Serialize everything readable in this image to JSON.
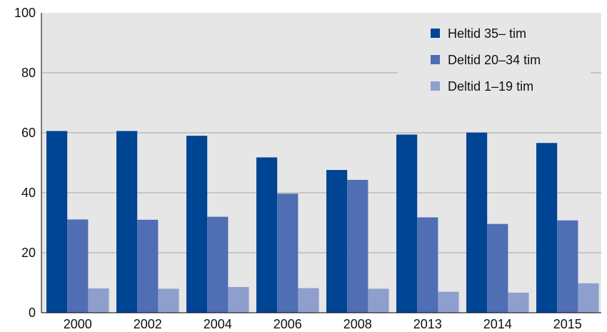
{
  "chart_data": {
    "type": "bar",
    "title": "",
    "xlabel": "",
    "ylabel": "",
    "categories": [
      "2000",
      "2002",
      "2004",
      "2006",
      "2008",
      "2013",
      "2014",
      "2015"
    ],
    "series": [
      {
        "name": "Heltid 35– tim",
        "color": "#004494",
        "values": [
          60.6,
          60.6,
          59.0,
          51.8,
          47.6,
          59.4,
          60.1,
          56.6
        ]
      },
      {
        "name": "Deltid 20–34 tim",
        "color": "#4f6eb4",
        "values": [
          31.1,
          31.0,
          32.0,
          39.7,
          44.3,
          31.8,
          29.6,
          30.8
        ]
      },
      {
        "name": "Deltid 1–19 tim",
        "color": "#8f9fcd",
        "values": [
          8.1,
          8.0,
          8.6,
          8.2,
          8.0,
          7.0,
          6.7,
          9.8
        ]
      }
    ],
    "ylim": [
      0,
      100
    ],
    "yticks": [
      0,
      20,
      40,
      60,
      80,
      100
    ],
    "grid": true,
    "legend": "top-right",
    "plot_background": "#e6e6e6",
    "gridline_color": "#a6a6a6"
  }
}
